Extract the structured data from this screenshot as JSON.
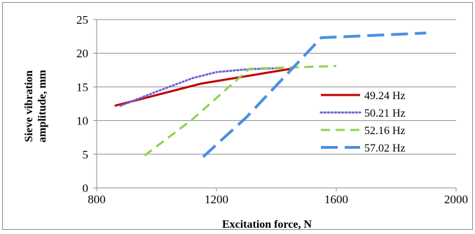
{
  "chart_data": {
    "type": "line",
    "title": "",
    "xlabel": "Excitation force, N",
    "ylabel_lines": [
      "Sieve vibration",
      "amplitude, mm"
    ],
    "xlim": [
      800,
      2000
    ],
    "ylim": [
      0,
      25
    ],
    "x_ticks": [
      800,
      1200,
      1600,
      2000
    ],
    "y_ticks": [
      0,
      5,
      10,
      15,
      20,
      25
    ],
    "grid": "horizontal",
    "legend_position": "center-right",
    "series": [
      {
        "name": "49.24 Hz",
        "color": "#c00000",
        "style": "solid",
        "x": [
          860,
          1150,
          1450
        ],
        "y": [
          12.2,
          15.5,
          17.7
        ]
      },
      {
        "name": "50.21 Hz",
        "color": "#7060d8",
        "style": "dotted",
        "x": [
          880,
          1000,
          1120,
          1200,
          1300,
          1420
        ],
        "y": [
          12.2,
          14.3,
          16.3,
          17.2,
          17.6,
          17.8
        ]
      },
      {
        "name": "52.16 Hz",
        "color": "#92d050",
        "style": "dashed",
        "x": [
          960,
          1120,
          1310,
          1600
        ],
        "y": [
          4.8,
          10.2,
          17.7,
          18.1
        ]
      },
      {
        "name": "57.02 Hz",
        "color": "#4a90e2",
        "style": "longdash",
        "x": [
          1155,
          1300,
          1550,
          1900
        ],
        "y": [
          4.6,
          10.5,
          22.3,
          23.0
        ]
      }
    ]
  }
}
